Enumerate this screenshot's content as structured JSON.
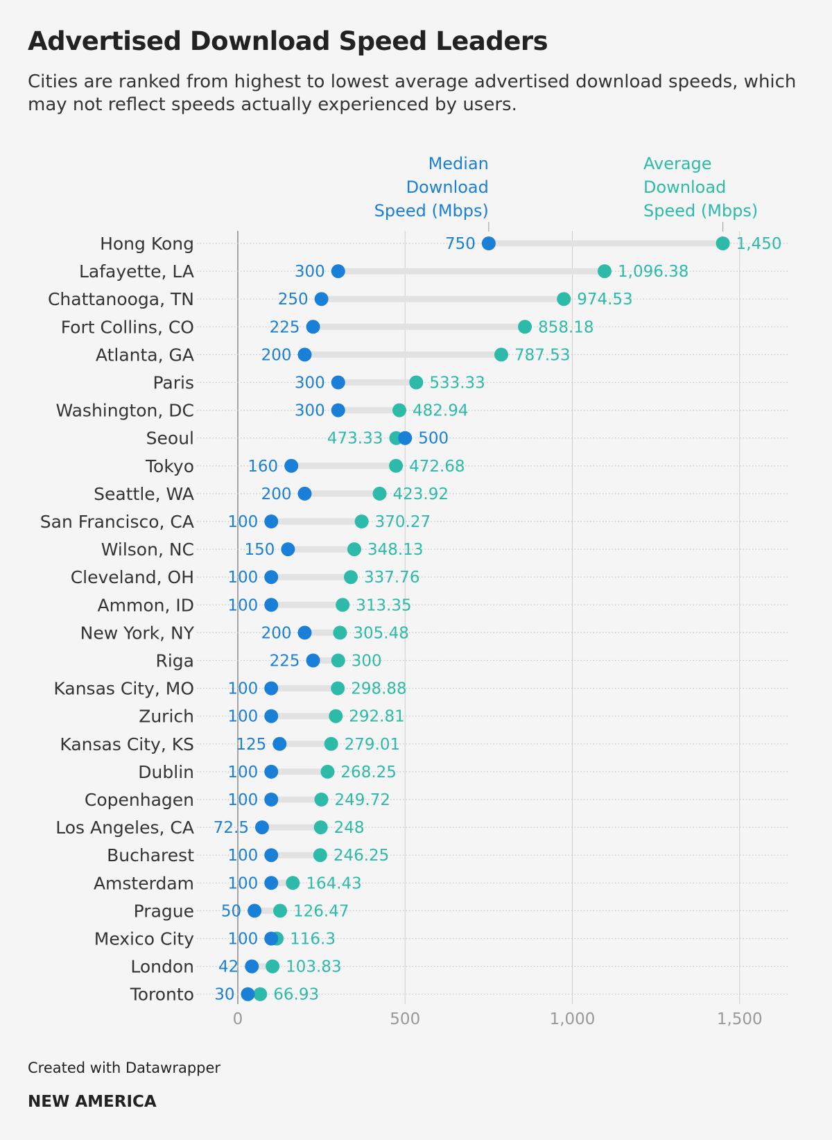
{
  "colors": {
    "median": "#1a7fd6",
    "average": "#2dbaa8"
  },
  "chart_data": {
    "type": "dot-range",
    "title": "Advertised Download Speed Leaders",
    "subtitle": "Cities are ranked from highest to lowest average advertised download speeds, which may not reflect speeds actually experienced by users.",
    "series": [
      {
        "name": "Median Download Speed (Mbps)",
        "key": "median"
      },
      {
        "name": "Average Download Speed (Mbps)",
        "key": "average"
      }
    ],
    "legend_labels": {
      "median": [
        "Median",
        "Download",
        "Speed (Mbps)"
      ],
      "average": [
        "Average",
        "Download",
        "Speed (Mbps)"
      ]
    },
    "xlim": [
      0,
      1650
    ],
    "x_ticks": [
      {
        "value": 0,
        "label": "0"
      },
      {
        "value": 500,
        "label": "500"
      },
      {
        "value": 1000,
        "label": "1,000"
      },
      {
        "value": 1500,
        "label": "1,500"
      }
    ],
    "rows": [
      {
        "city": "Hong Kong",
        "median": 750,
        "median_label": "750",
        "average": 1450,
        "average_label": "1,450"
      },
      {
        "city": "Lafayette, LA",
        "median": 300,
        "median_label": "300",
        "average": 1096.38,
        "average_label": "1,096.38"
      },
      {
        "city": "Chattanooga, TN",
        "median": 250,
        "median_label": "250",
        "average": 974.53,
        "average_label": "974.53"
      },
      {
        "city": "Fort Collins, CO",
        "median": 225,
        "median_label": "225",
        "average": 858.18,
        "average_label": "858.18"
      },
      {
        "city": "Atlanta, GA",
        "median": 200,
        "median_label": "200",
        "average": 787.53,
        "average_label": "787.53"
      },
      {
        "city": "Paris",
        "median": 300,
        "median_label": "300",
        "average": 533.33,
        "average_label": "533.33"
      },
      {
        "city": "Washington, DC",
        "median": 300,
        "median_label": "300",
        "average": 482.94,
        "average_label": "482.94"
      },
      {
        "city": "Seoul",
        "median": 500,
        "median_label": "500",
        "average": 473.33,
        "average_label": "473.33"
      },
      {
        "city": "Tokyo",
        "median": 160,
        "median_label": "160",
        "average": 472.68,
        "average_label": "472.68"
      },
      {
        "city": "Seattle, WA",
        "median": 200,
        "median_label": "200",
        "average": 423.92,
        "average_label": "423.92"
      },
      {
        "city": "San Francisco, CA",
        "median": 100,
        "median_label": "100",
        "average": 370.27,
        "average_label": "370.27"
      },
      {
        "city": "Wilson, NC",
        "median": 150,
        "median_label": "150",
        "average": 348.13,
        "average_label": "348.13"
      },
      {
        "city": "Cleveland, OH",
        "median": 100,
        "median_label": "100",
        "average": 337.76,
        "average_label": "337.76"
      },
      {
        "city": "Ammon, ID",
        "median": 100,
        "median_label": "100",
        "average": 313.35,
        "average_label": "313.35"
      },
      {
        "city": "New York, NY",
        "median": 200,
        "median_label": "200",
        "average": 305.48,
        "average_label": "305.48"
      },
      {
        "city": "Riga",
        "median": 225,
        "median_label": "225",
        "average": 300,
        "average_label": "300"
      },
      {
        "city": "Kansas City, MO",
        "median": 100,
        "median_label": "100",
        "average": 298.88,
        "average_label": "298.88"
      },
      {
        "city": "Zurich",
        "median": 100,
        "median_label": "100",
        "average": 292.81,
        "average_label": "292.81"
      },
      {
        "city": "Kansas City, KS",
        "median": 125,
        "median_label": "125",
        "average": 279.01,
        "average_label": "279.01"
      },
      {
        "city": "Dublin",
        "median": 100,
        "median_label": "100",
        "average": 268.25,
        "average_label": "268.25"
      },
      {
        "city": "Copenhagen",
        "median": 100,
        "median_label": "100",
        "average": 249.72,
        "average_label": "249.72"
      },
      {
        "city": "Los Angeles, CA",
        "median": 72.5,
        "median_label": "72.5",
        "average": 248,
        "average_label": "248"
      },
      {
        "city": "Bucharest",
        "median": 100,
        "median_label": "100",
        "average": 246.25,
        "average_label": "246.25"
      },
      {
        "city": "Amsterdam",
        "median": 100,
        "median_label": "100",
        "average": 164.43,
        "average_label": "164.43"
      },
      {
        "city": "Prague",
        "median": 50,
        "median_label": "50",
        "average": 126.47,
        "average_label": "126.47"
      },
      {
        "city": "Mexico City",
        "median": 100,
        "median_label": "100",
        "average": 116.3,
        "average_label": "116.3"
      },
      {
        "city": "London",
        "median": 42,
        "median_label": "42",
        "average": 103.83,
        "average_label": "103.83"
      },
      {
        "city": "Toronto",
        "median": 30,
        "median_label": "30",
        "average": 66.93,
        "average_label": "66.93"
      }
    ]
  },
  "footer": {
    "credit": "Created with Datawrapper",
    "brand": "NEW AMERICA"
  }
}
